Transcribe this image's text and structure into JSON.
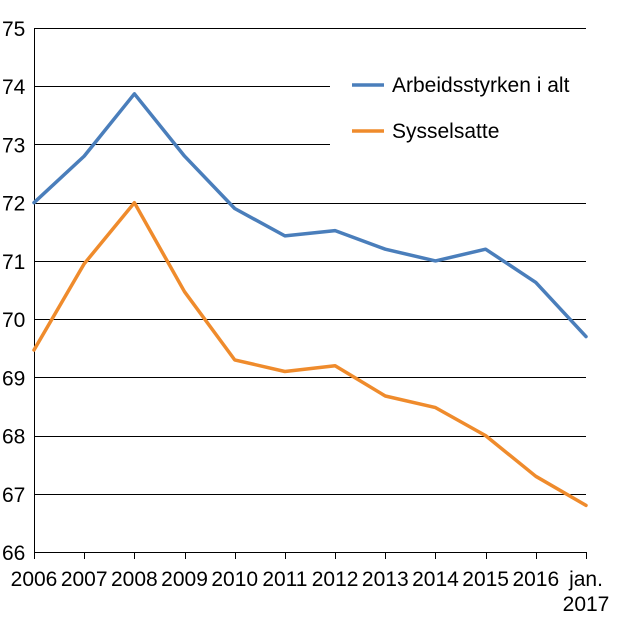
{
  "chart_data": {
    "type": "line",
    "title": "",
    "xlabel": "",
    "ylabel": "",
    "ylim": [
      66,
      75
    ],
    "yticks": [
      "66",
      "67",
      "68",
      "69",
      "70",
      "71",
      "72",
      "73",
      "74",
      "75"
    ],
    "categories": [
      "2006",
      "2007",
      "2008",
      "2009",
      "2010",
      "2011",
      "2012",
      "2013",
      "2014",
      "2015",
      "2016",
      "jan. 2017"
    ],
    "category_labels": [
      [
        "2006"
      ],
      [
        "2007"
      ],
      [
        "2008"
      ],
      [
        "2009"
      ],
      [
        "2010"
      ],
      [
        "2011"
      ],
      [
        "2012"
      ],
      [
        "2013"
      ],
      [
        "2014"
      ],
      [
        "2015"
      ],
      [
        "2016"
      ],
      [
        "jan.",
        "2017"
      ]
    ],
    "grid": true,
    "legend_position": "top-right",
    "series": [
      {
        "name": "Arbeidsstyrken i alt",
        "color": "#4a7ebb",
        "values": [
          72.0,
          72.8,
          73.87,
          72.8,
          71.9,
          71.43,
          71.52,
          71.2,
          71.0,
          71.2,
          70.63,
          69.7
        ]
      },
      {
        "name": "Sysselsatte",
        "color": "#ef8b2c",
        "values": [
          69.47,
          70.95,
          72.0,
          70.47,
          69.3,
          69.1,
          69.2,
          68.68,
          68.48,
          68.0,
          67.3,
          66.8
        ]
      }
    ]
  }
}
